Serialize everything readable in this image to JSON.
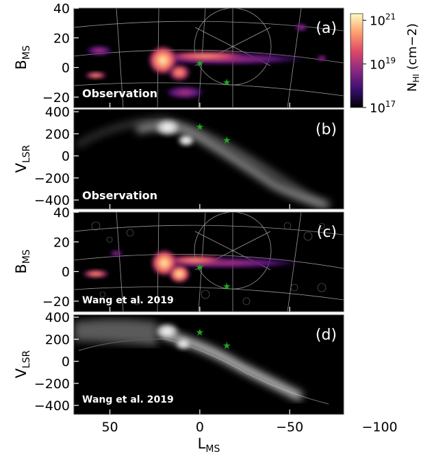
{
  "figure": {
    "xlabel": "L",
    "xlabel_sub": "MS",
    "x_ticks": [
      50,
      0,
      -50,
      -100
    ],
    "x_tick_labels": [
      "50",
      "0",
      "−50",
      "−100"
    ],
    "xlim": [
      70,
      -80
    ],
    "colorbar": {
      "label": "N",
      "label_sub": "HI",
      "label_unit": "(cm−2)",
      "ticks": [
        17,
        19,
        21
      ],
      "tick_labels": [
        "10",
        "10",
        "10"
      ],
      "tick_exponents": [
        "17",
        "19",
        "21"
      ],
      "range_log10": [
        17,
        21.3
      ],
      "colormap": [
        "#000004",
        "#3b0f70",
        "#8c2981",
        "#de4968",
        "#fe9f6d",
        "#fcfdbf"
      ]
    }
  },
  "chart_data": [
    {
      "type": "heatmap",
      "panel_label": "(a)",
      "annotation": "Observation",
      "ylabel": "B",
      "ylabel_sub": "MS",
      "ylim": [
        -27,
        40
      ],
      "y_ticks": [
        -20,
        0,
        20,
        40
      ],
      "y_tick_labels": [
        "−20",
        "0",
        "20",
        "40"
      ],
      "markers": [
        {
          "x": 0,
          "y": 3
        },
        {
          "x": -15,
          "y": -10
        }
      ],
      "marker_color": "#1fa81f"
    },
    {
      "type": "heatmap",
      "panel_label": "(b)",
      "annotation": "Observation",
      "ylabel": "V",
      "ylabel_sub": "LSR",
      "ylim": [
        -480,
        420
      ],
      "y_ticks": [
        -400,
        -200,
        0,
        200,
        400
      ],
      "y_tick_labels": [
        "−400",
        "−200",
        "0",
        "200",
        "400"
      ],
      "markers": [
        {
          "x": 0,
          "y": 265
        },
        {
          "x": -15,
          "y": 145
        }
      ],
      "marker_color": "#1fa81f"
    },
    {
      "type": "heatmap",
      "panel_label": "(c)",
      "annotation": "Wang et al. 2019",
      "ylabel": "B",
      "ylabel_sub": "MS",
      "ylim": [
        -27,
        40
      ],
      "y_ticks": [
        -20,
        0,
        20,
        40
      ],
      "y_tick_labels": [
        "−20",
        "0",
        "20",
        "40"
      ],
      "markers": [
        {
          "x": 0,
          "y": 3
        },
        {
          "x": -15,
          "y": -10
        }
      ],
      "marker_color": "#1fa81f"
    },
    {
      "type": "heatmap",
      "panel_label": "(d)",
      "annotation": "Wang et al. 2019",
      "ylabel": "V",
      "ylabel_sub": "LSR",
      "ylim": [
        -480,
        420
      ],
      "y_ticks": [
        -400,
        -200,
        0,
        200,
        400
      ],
      "y_tick_labels": [
        "−400",
        "−200",
        "0",
        "200",
        "400"
      ],
      "markers": [
        {
          "x": 0,
          "y": 265
        },
        {
          "x": -15,
          "y": 145
        }
      ],
      "marker_color": "#1fa81f"
    }
  ]
}
